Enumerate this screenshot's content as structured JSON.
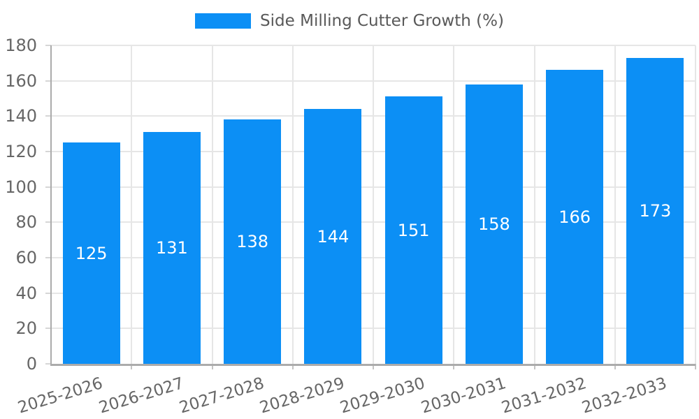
{
  "chart_data": {
    "type": "bar",
    "title": "Side Milling Cutter Growth (%)",
    "legend_entries": [
      "Side Milling Cutter Growth (%)"
    ],
    "legend_position": "top-center",
    "categories": [
      "2025-2026",
      "2026-2027",
      "2027-2028",
      "2028-2029",
      "2029-2030",
      "2030-2031",
      "2031-2032",
      "2032-2033"
    ],
    "values": [
      125,
      131,
      138,
      144,
      151,
      158,
      166,
      173
    ],
    "value_labels_visible": true,
    "xlabel": "",
    "ylabel": "",
    "ylim": [
      0,
      180
    ],
    "yticks": [
      0,
      20,
      40,
      60,
      80,
      100,
      120,
      140,
      160,
      180
    ],
    "grid": true,
    "x_label_rotation_deg": -17,
    "colors": {
      "bar": "#0c8ff5",
      "grid": "#e6e6e6",
      "axis": "#ababab",
      "tick_label": "#666666",
      "legend_text": "#595959",
      "value_label": "#ffffff",
      "background": "#ffffff"
    }
  }
}
